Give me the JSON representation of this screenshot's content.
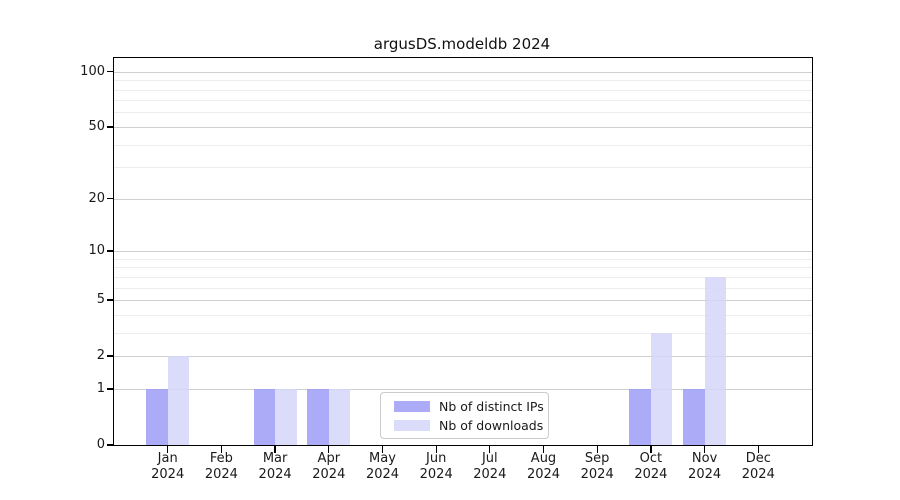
{
  "title": "argusDS.modeldb 2024",
  "chart_data": {
    "type": "bar",
    "title": "argusDS.modeldb 2024",
    "xlabel": "",
    "ylabel": "",
    "year_label": "2024",
    "categories": [
      "Jan",
      "Feb",
      "Mar",
      "Apr",
      "May",
      "Jun",
      "Jul",
      "Aug",
      "Sep",
      "Oct",
      "Nov",
      "Dec"
    ],
    "series": [
      {
        "name": "Nb of distinct IPs",
        "color": "rgba(156,156,246,0.85)",
        "color_solid": "#abaaf7",
        "values": [
          1,
          0,
          1,
          1,
          0,
          0,
          0,
          0,
          0,
          1,
          1,
          0
        ]
      },
      {
        "name": "Nb of downloads",
        "color": "rgba(213,213,249,0.85)",
        "color_solid": "#dbdbf9",
        "values": [
          2,
          0,
          1,
          1,
          0,
          0,
          0,
          0,
          0,
          3,
          7,
          0
        ]
      }
    ],
    "y_scale": "log1p",
    "ylim": [
      0,
      119
    ],
    "y_major_ticks": [
      0,
      1,
      2,
      5,
      10,
      20,
      50,
      100
    ],
    "y_minor_ticks": [
      3,
      4,
      6,
      7,
      8,
      9,
      30,
      40,
      60,
      70,
      80,
      90
    ],
    "grid": "horizontal",
    "legend_position": "inside lower-center-left",
    "colors": {
      "major_grid": "#cfcfcf",
      "minor_grid": "#ededed",
      "axis": "#000000",
      "text": "#1a1a1a",
      "background": "#ffffff"
    }
  },
  "legend": {
    "items": [
      "Nb of distinct IPs",
      "Nb of downloads"
    ]
  }
}
